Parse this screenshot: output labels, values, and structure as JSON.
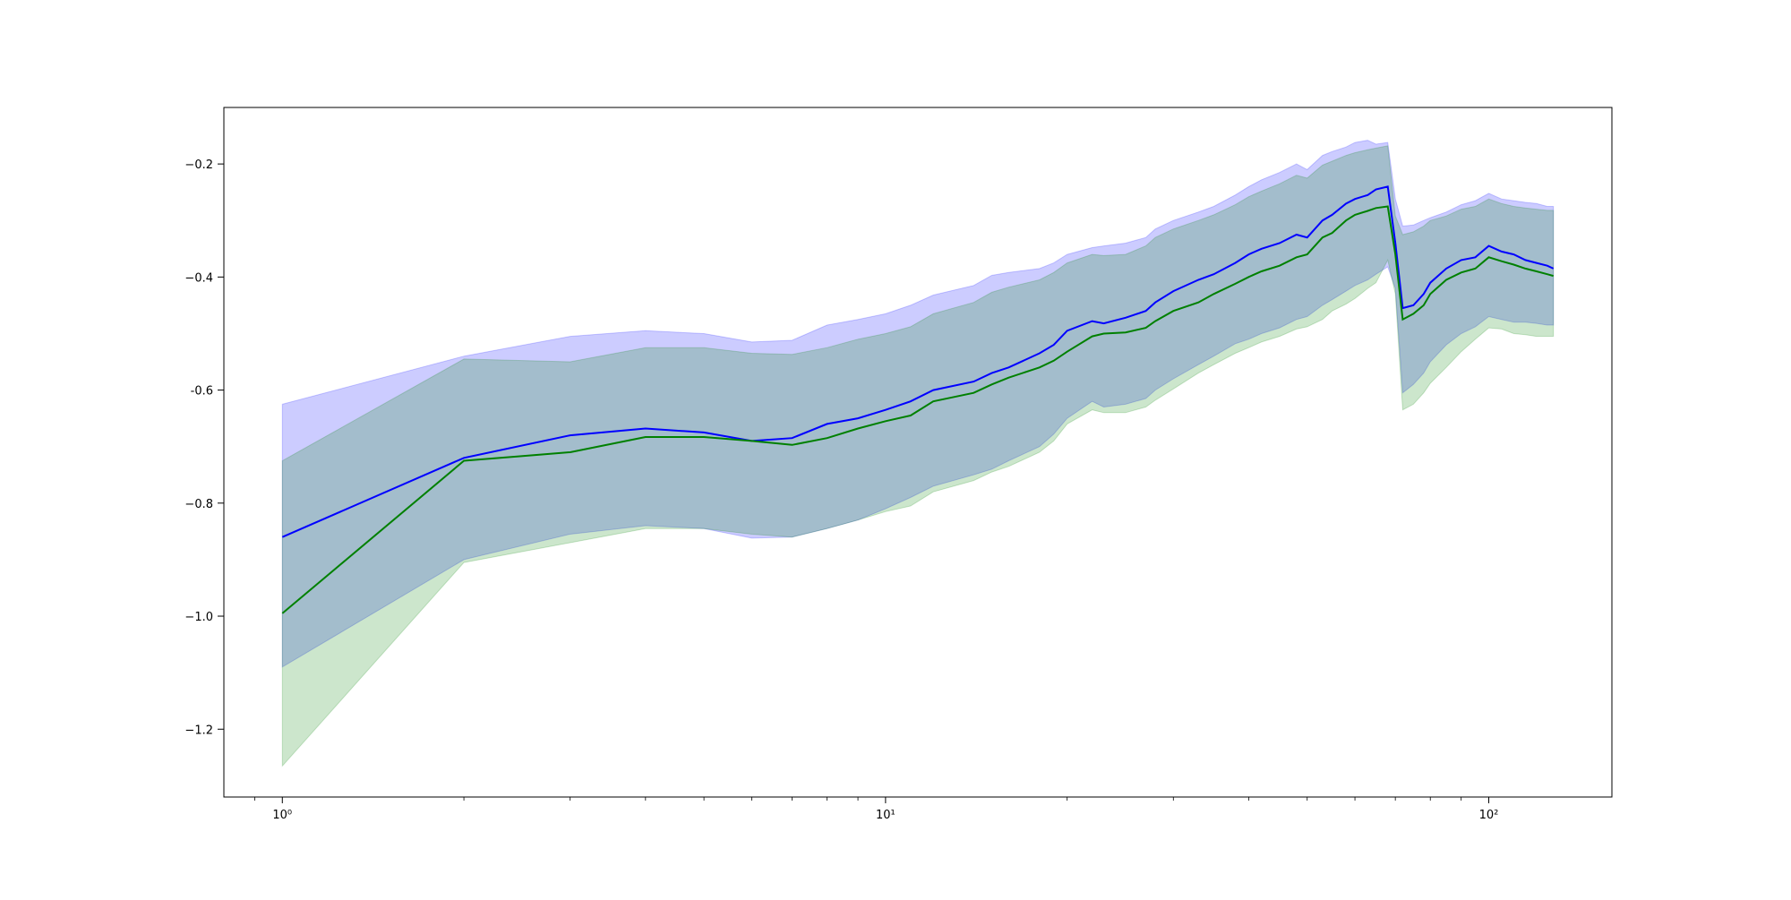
{
  "chart_data": {
    "type": "line",
    "xscale": "log",
    "xlim": [
      0.8,
      160
    ],
    "ylim": [
      -1.32,
      -0.1
    ],
    "grid": false,
    "legend": "none",
    "x_ticks": [
      {
        "value": 1,
        "label": "10⁰"
      },
      {
        "value": 10,
        "label": "10¹"
      },
      {
        "value": 100,
        "label": "10²"
      }
    ],
    "y_ticks": [
      {
        "value": -0.2,
        "label": "−0.2"
      },
      {
        "value": -0.4,
        "label": "−0.4"
      },
      {
        "value": -0.6,
        "label": "-0.6"
      },
      {
        "value": -0.8,
        "label": "−0.8"
      },
      {
        "value": -1.0,
        "label": "−1.0"
      },
      {
        "value": -1.2,
        "label": "−1.2"
      }
    ],
    "series": [
      {
        "color": "#0000ff",
        "band_color": "#0000ff",
        "x": [
          1,
          2,
          3,
          4,
          5,
          6,
          7,
          8,
          9,
          10,
          11,
          12,
          14,
          15,
          16,
          18,
          19,
          20,
          22,
          23,
          25,
          27,
          28,
          30,
          33,
          35,
          38,
          40,
          42,
          45,
          48,
          50,
          53,
          55,
          58,
          60,
          63,
          65,
          68,
          70,
          72,
          75,
          78,
          80,
          85,
          90,
          95,
          100,
          105,
          110,
          115,
          120,
          125,
          128
        ],
        "mean": [
          -0.86,
          -0.72,
          -0.68,
          -0.668,
          -0.675,
          -0.69,
          -0.685,
          -0.66,
          -0.65,
          -0.635,
          -0.62,
          -0.6,
          -0.585,
          -0.57,
          -0.56,
          -0.535,
          -0.52,
          -0.495,
          -0.478,
          -0.482,
          -0.472,
          -0.46,
          -0.445,
          -0.425,
          -0.405,
          -0.395,
          -0.375,
          -0.36,
          -0.35,
          -0.34,
          -0.325,
          -0.33,
          -0.3,
          -0.29,
          -0.27,
          -0.262,
          -0.255,
          -0.245,
          -0.24,
          -0.34,
          -0.455,
          -0.45,
          -0.43,
          -0.41,
          -0.385,
          -0.37,
          -0.365,
          -0.345,
          -0.355,
          -0.36,
          -0.37,
          -0.375,
          -0.38,
          -0.385
        ],
        "upper": [
          -0.625,
          -0.54,
          -0.505,
          -0.495,
          -0.5,
          -0.515,
          -0.512,
          -0.485,
          -0.475,
          -0.465,
          -0.45,
          -0.432,
          -0.415,
          -0.397,
          -0.392,
          -0.385,
          -0.375,
          -0.36,
          -0.348,
          -0.345,
          -0.34,
          -0.33,
          -0.315,
          -0.3,
          -0.285,
          -0.275,
          -0.255,
          -0.24,
          -0.228,
          -0.215,
          -0.2,
          -0.21,
          -0.185,
          -0.178,
          -0.17,
          -0.162,
          -0.158,
          -0.165,
          -0.162,
          -0.262,
          -0.31,
          -0.308,
          -0.3,
          -0.295,
          -0.285,
          -0.272,
          -0.265,
          -0.252,
          -0.262,
          -0.265,
          -0.268,
          -0.27,
          -0.275,
          -0.275
        ],
        "lower": [
          -1.09,
          -0.9,
          -0.855,
          -0.84,
          -0.845,
          -0.862,
          -0.86,
          -0.845,
          -0.83,
          -0.81,
          -0.79,
          -0.77,
          -0.75,
          -0.74,
          -0.725,
          -0.7,
          -0.678,
          -0.65,
          -0.62,
          -0.63,
          -0.625,
          -0.615,
          -0.6,
          -0.58,
          -0.555,
          -0.54,
          -0.518,
          -0.51,
          -0.5,
          -0.49,
          -0.475,
          -0.47,
          -0.45,
          -0.44,
          -0.425,
          -0.415,
          -0.405,
          -0.395,
          -0.382,
          -0.42,
          -0.605,
          -0.59,
          -0.57,
          -0.55,
          -0.52,
          -0.5,
          -0.488,
          -0.47,
          -0.475,
          -0.48,
          -0.48,
          -0.482,
          -0.485,
          -0.485
        ]
      },
      {
        "color": "#008000",
        "band_color": "#008000",
        "x": [
          1,
          2,
          3,
          4,
          5,
          6,
          7,
          8,
          9,
          10,
          11,
          12,
          14,
          15,
          16,
          18,
          19,
          20,
          22,
          23,
          25,
          27,
          28,
          30,
          33,
          35,
          38,
          40,
          42,
          45,
          48,
          50,
          53,
          55,
          58,
          60,
          63,
          65,
          68,
          70,
          72,
          75,
          78,
          80,
          85,
          90,
          95,
          100,
          105,
          110,
          115,
          120,
          125,
          128
        ],
        "mean": [
          -0.995,
          -0.725,
          -0.71,
          -0.683,
          -0.683,
          -0.69,
          -0.697,
          -0.685,
          -0.668,
          -0.655,
          -0.645,
          -0.62,
          -0.605,
          -0.59,
          -0.578,
          -0.56,
          -0.548,
          -0.532,
          -0.505,
          -0.5,
          -0.498,
          -0.49,
          -0.478,
          -0.46,
          -0.445,
          -0.43,
          -0.412,
          -0.4,
          -0.39,
          -0.38,
          -0.365,
          -0.36,
          -0.33,
          -0.322,
          -0.3,
          -0.29,
          -0.283,
          -0.278,
          -0.275,
          -0.36,
          -0.475,
          -0.465,
          -0.45,
          -0.43,
          -0.405,
          -0.392,
          -0.385,
          -0.365,
          -0.372,
          -0.378,
          -0.385,
          -0.39,
          -0.395,
          -0.398
        ],
        "upper": [
          -0.725,
          -0.545,
          -0.55,
          -0.525,
          -0.525,
          -0.535,
          -0.537,
          -0.525,
          -0.51,
          -0.5,
          -0.488,
          -0.465,
          -0.445,
          -0.427,
          -0.418,
          -0.405,
          -0.392,
          -0.375,
          -0.36,
          -0.362,
          -0.36,
          -0.345,
          -0.33,
          -0.315,
          -0.3,
          -0.29,
          -0.272,
          -0.258,
          -0.248,
          -0.235,
          -0.22,
          -0.225,
          -0.202,
          -0.195,
          -0.185,
          -0.18,
          -0.175,
          -0.172,
          -0.168,
          -0.292,
          -0.325,
          -0.32,
          -0.31,
          -0.3,
          -0.292,
          -0.28,
          -0.275,
          -0.262,
          -0.27,
          -0.275,
          -0.278,
          -0.28,
          -0.282,
          -0.282
        ],
        "lower": [
          -1.265,
          -0.905,
          -0.87,
          -0.845,
          -0.845,
          -0.855,
          -0.86,
          -0.845,
          -0.83,
          -0.815,
          -0.805,
          -0.78,
          -0.76,
          -0.745,
          -0.735,
          -0.71,
          -0.69,
          -0.66,
          -0.635,
          -0.64,
          -0.64,
          -0.63,
          -0.618,
          -0.598,
          -0.57,
          -0.555,
          -0.535,
          -0.525,
          -0.515,
          -0.505,
          -0.492,
          -0.488,
          -0.475,
          -0.46,
          -0.448,
          -0.438,
          -0.42,
          -0.41,
          -0.37,
          -0.43,
          -0.635,
          -0.625,
          -0.605,
          -0.588,
          -0.56,
          -0.532,
          -0.51,
          -0.49,
          -0.492,
          -0.5,
          -0.502,
          -0.505,
          -0.505,
          -0.505
        ]
      }
    ]
  }
}
